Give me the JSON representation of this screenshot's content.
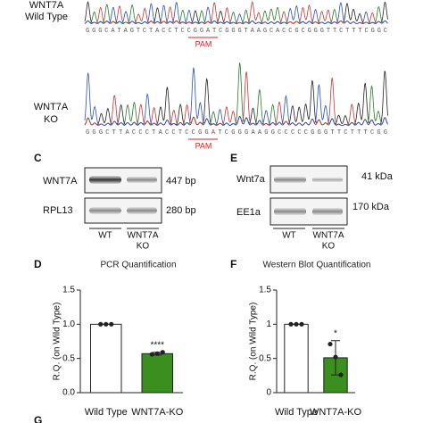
{
  "sequencing": {
    "wild_type": {
      "label_lines": [
        "WNT7A",
        "Wild Type"
      ],
      "sequence": "GGGCATAGTCTACCTCCGGATCGGGTAAGCACCGCGGGTTCTTTCGGC",
      "pam": "PAM"
    },
    "ko": {
      "label_lines": [
        "WNT7A",
        "KO"
      ],
      "sequence": "GGGCTTACCCTACCTCCGGATCGGGAAGGCCCCCGGGTTCTTTCGG",
      "pam": "PAM"
    }
  },
  "gel_pcr": {
    "panel": "C",
    "rows": [
      {
        "name": "WNT7A",
        "size": "447 bp"
      },
      {
        "name": "RPL13",
        "size": "280 bp"
      }
    ],
    "lanes": [
      [
        "WT"
      ],
      [
        "WNT7A",
        "KO"
      ]
    ]
  },
  "western": {
    "panel": "E",
    "rows": [
      {
        "name": "Wnt7a",
        "size": "41 kDa"
      },
      {
        "name": "EE1a",
        "size": "170 kDa"
      }
    ],
    "lanes": [
      [
        "WT"
      ],
      [
        "WNT7A",
        "KO"
      ]
    ]
  },
  "chart_data": [
    {
      "panel": "D",
      "type": "bar",
      "title": "PCR Quantification",
      "ylabel": "R.Q. (on Wild Type)",
      "categories": [
        "Wild Type",
        "WNT7A-KO"
      ],
      "values": [
        1.0,
        0.57
      ],
      "errors": [
        0,
        0.02
      ],
      "points": [
        [
          1.0,
          1.0,
          1.0
        ],
        [
          0.56,
          0.57,
          0.59
        ]
      ],
      "colors": [
        "#ffffff",
        "#3a8f1f"
      ],
      "ylim": [
        0,
        1.5
      ],
      "yticks": [
        {
          "value": 0,
          "label": "0.0"
        },
        0.5,
        {
          "value": 1,
          "label": "1.0"
        },
        1.5
      ],
      "annotation": "****"
    },
    {
      "panel": "F",
      "type": "bar",
      "title": "Western Blot Quantification",
      "ylabel": "R.Q. (on Wild Type)",
      "categories": [
        "Wild Type",
        "WNT7A-KO"
      ],
      "values": [
        1.0,
        0.51
      ],
      "errors": [
        0,
        0.25
      ],
      "points": [
        [
          1.0,
          1.0,
          1.0
        ],
        [
          0.71,
          0.52,
          0.26
        ]
      ],
      "colors": [
        "#ffffff",
        "#3a8f1f"
      ],
      "ylim": [
        0,
        1.5
      ],
      "yticks": [
        0,
        0.5,
        1,
        1.5
      ],
      "annotation": "*"
    }
  ],
  "next_panel": "G"
}
